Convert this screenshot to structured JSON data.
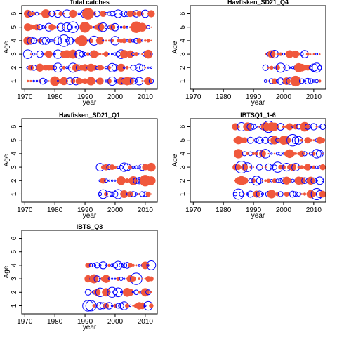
{
  "colors": {
    "observed": "#0000ff",
    "residual": "#f0583c",
    "axes": "#000000",
    "background": "#ffffff"
  },
  "chart_data": [
    {
      "type": "scatter",
      "title": "Total catches",
      "xlabel": "year",
      "ylabel": "Age",
      "xlim": [
        1969,
        2014
      ],
      "ylim": [
        0.4,
        6.6
      ],
      "xticks": [
        1970,
        1980,
        1990,
        2000,
        2010
      ],
      "yticks": [
        1,
        2,
        3,
        4,
        5,
        6
      ],
      "years": [
        1971,
        2012
      ],
      "grid": false,
      "legend": "none"
    },
    {
      "type": "scatter",
      "title": "Havfisken_SD21_Q4",
      "xlabel": "year",
      "ylabel": "Age",
      "xlim": [
        1969,
        2014
      ],
      "ylim": [
        0.4,
        6.6
      ],
      "xticks": [
        1970,
        1980,
        1990,
        2000,
        2010
      ],
      "yticks": [
        1,
        2,
        3,
        4,
        5,
        6
      ],
      "years": [
        1994,
        2012
      ],
      "ages": [
        1,
        3
      ],
      "grid": false,
      "legend": "none"
    },
    {
      "type": "scatter",
      "title": "Havfisken_SD21_Q1",
      "xlabel": "year",
      "ylabel": "Age",
      "xlim": [
        1969,
        2014
      ],
      "ylim": [
        0.4,
        6.6
      ],
      "xticks": [
        1970,
        1980,
        1990,
        2000,
        2010
      ],
      "yticks": [
        1,
        2,
        3,
        4,
        5,
        6
      ],
      "years": [
        1995,
        2012
      ],
      "ages": [
        1,
        3
      ],
      "grid": false,
      "legend": "none"
    },
    {
      "type": "scatter",
      "title": "IBTSQ1_1-6",
      "xlabel": "year",
      "ylabel": "Age",
      "xlim": [
        1969,
        2014
      ],
      "ylim": [
        0.4,
        6.6
      ],
      "xticks": [
        1970,
        1980,
        1990,
        2000,
        2010
      ],
      "yticks": [
        1,
        2,
        3,
        4,
        5,
        6
      ],
      "years": [
        1984,
        2013
      ],
      "grid": false,
      "legend": "none"
    },
    {
      "type": "scatter",
      "title": "IBTS_Q3",
      "xlabel": "year",
      "ylabel": "Age",
      "xlim": [
        1969,
        2014
      ],
      "ylim": [
        0.4,
        6.6
      ],
      "xticks": [
        1970,
        1980,
        1990,
        2000,
        2010
      ],
      "yticks": [
        1,
        2,
        3,
        4,
        5,
        6
      ],
      "years": [
        1991,
        2012
      ],
      "ages": [
        1,
        4
      ],
      "grid": false,
      "legend": "none"
    }
  ]
}
